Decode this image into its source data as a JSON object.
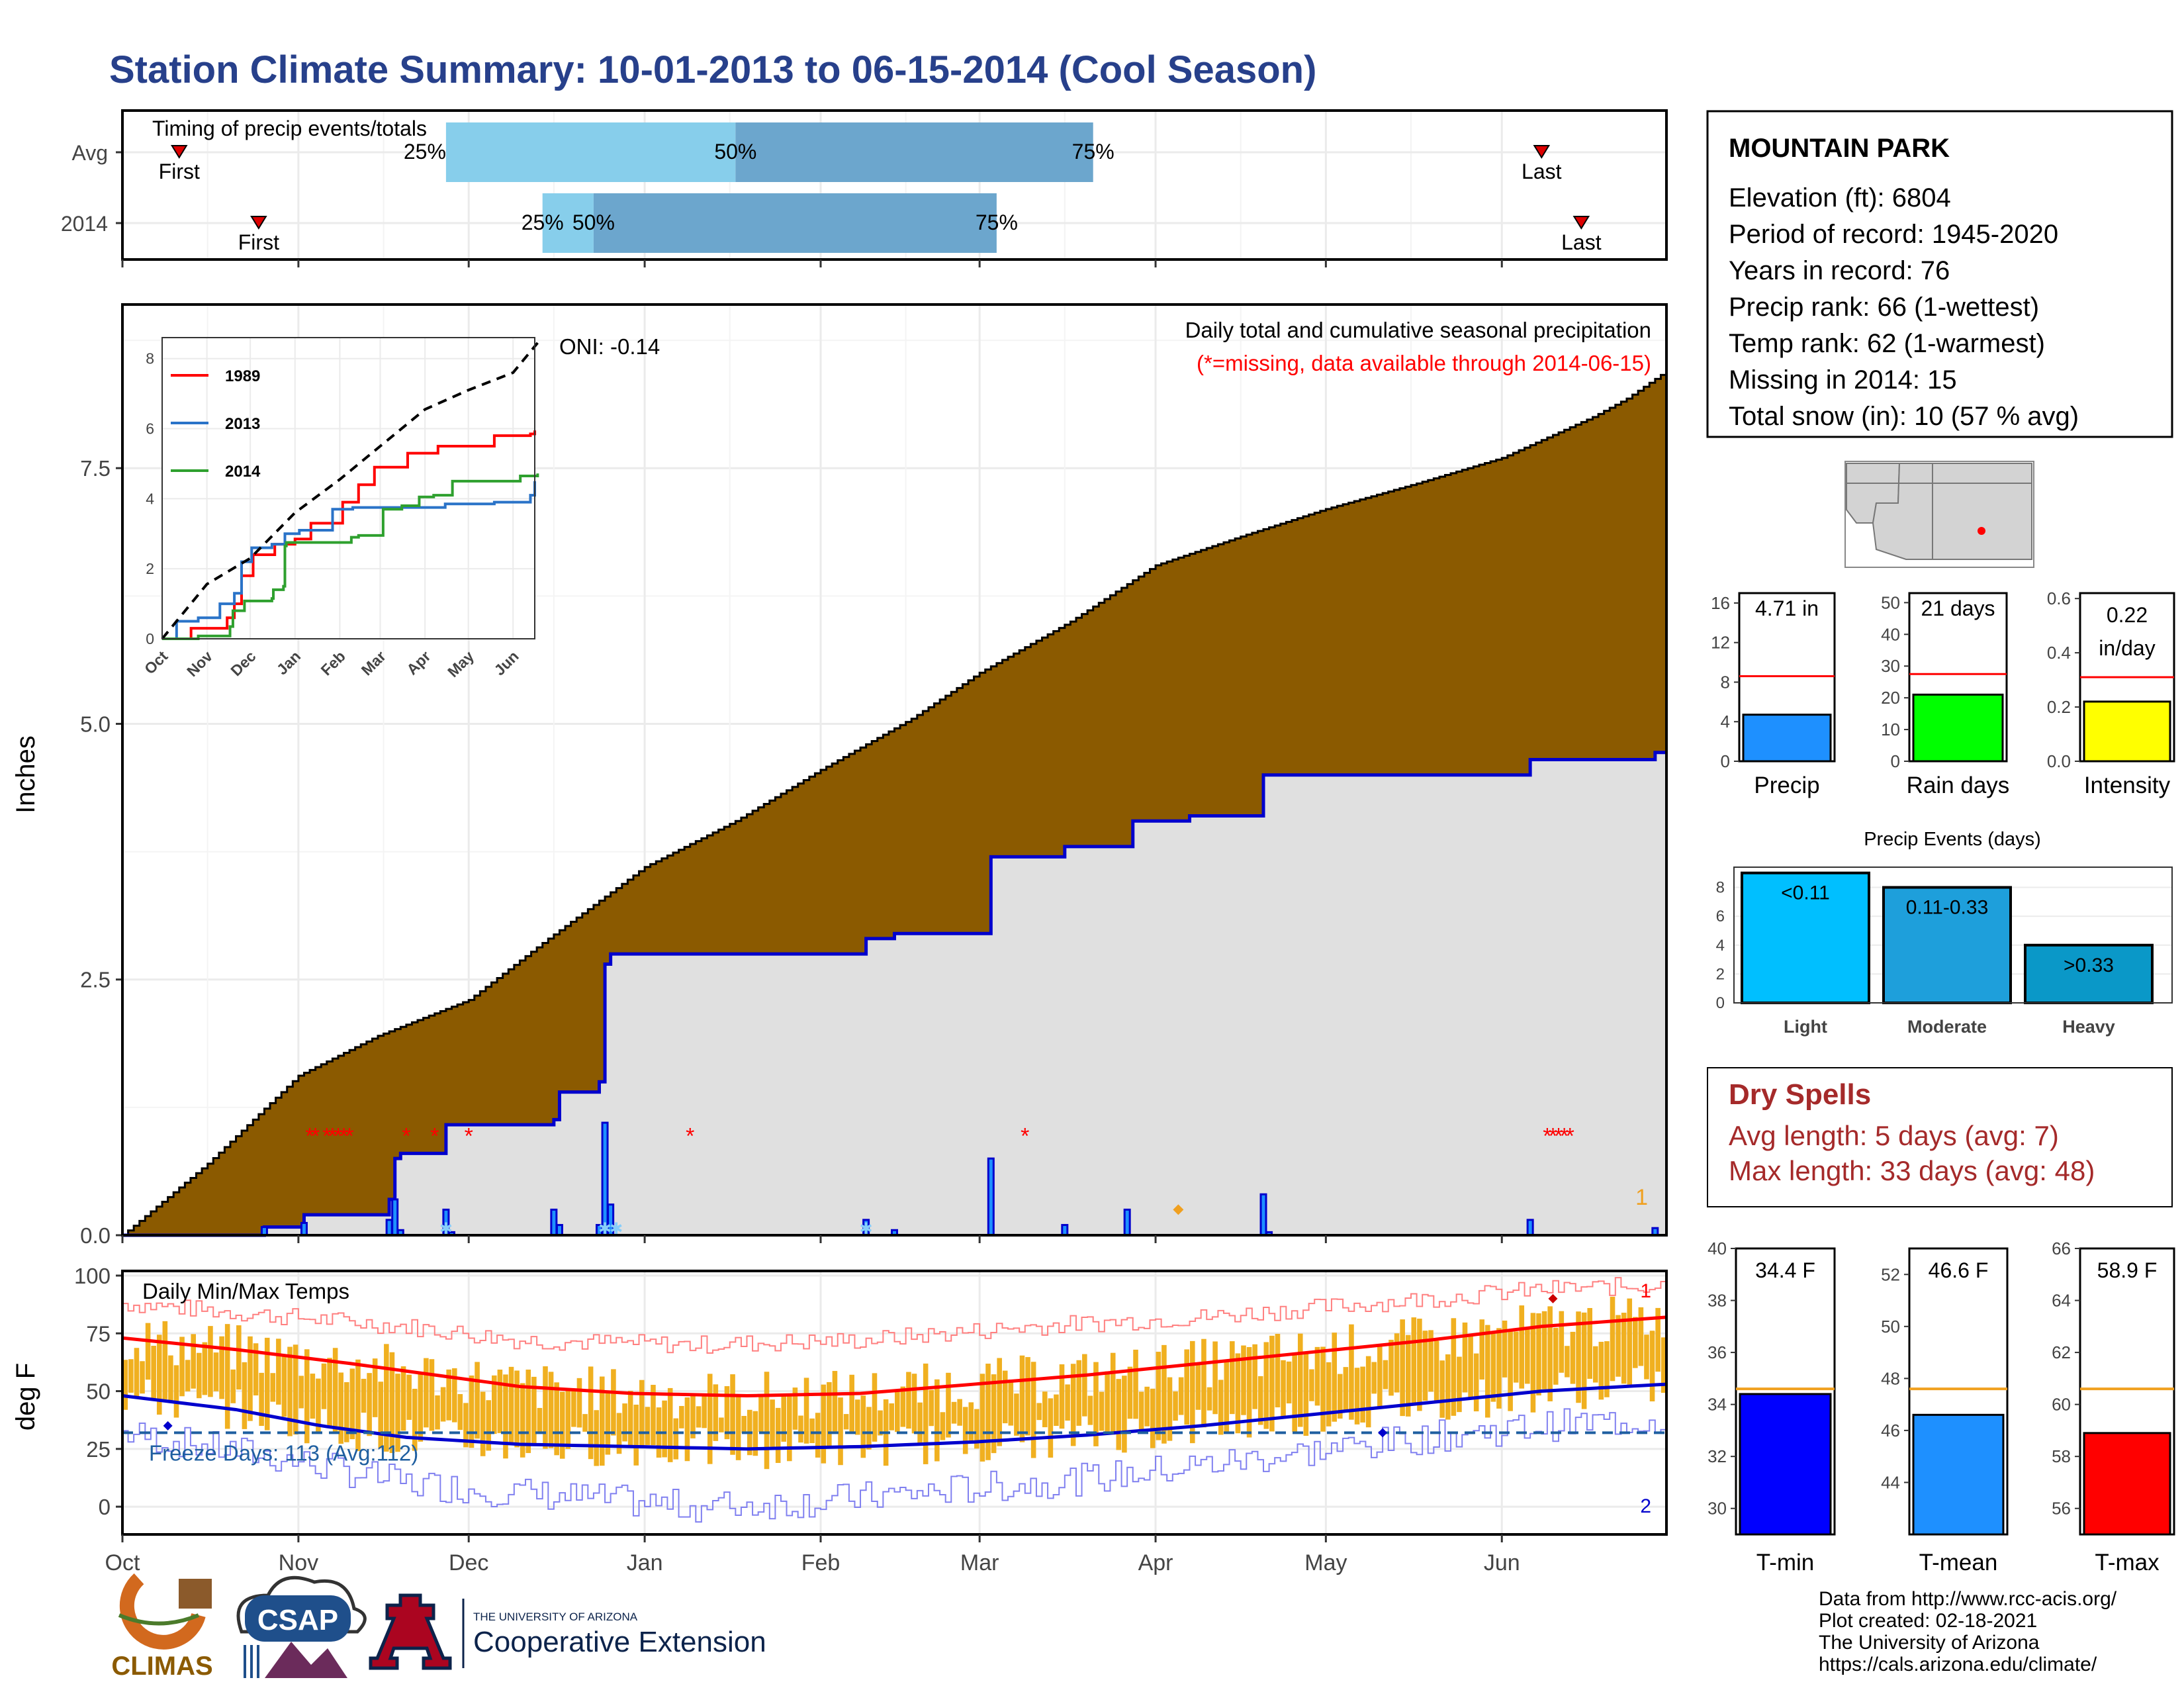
{
  "title": "Station Climate Summary: 10-01-2013 to 06-15-2014 (Cool Season)",
  "colors": {
    "title": "#27408B",
    "brown": "#8B5A00",
    "gray_fill": "#E0E0E0",
    "blue": "#0000CD",
    "red": "#FF0000",
    "orange": "#F0B020",
    "lightblue": "#87CEEB",
    "steelblue": "#6CA6CD",
    "darkred": "#A52A2A"
  },
  "months": [
    "Oct",
    "Nov",
    "Dec",
    "Jan",
    "Feb",
    "Mar",
    "Apr",
    "May",
    "Jun"
  ],
  "timing": {
    "label": "Timing of precip events/totals",
    "rows": [
      {
        "name": "Avg",
        "first_day": 10,
        "last_day": 250,
        "q25": 57,
        "q50": 108,
        "q75": 171
      },
      {
        "name": "2014",
        "first_day": 24,
        "last_day": 257,
        "q25": 74,
        "q50": 83,
        "q75": 154
      }
    ],
    "first_label": "First",
    "last_label": "Last",
    "q25_label": "25%",
    "q50_label": "50%",
    "q75_label": "75%"
  },
  "station": {
    "name": "MOUNTAIN PARK",
    "lines": [
      "Elevation (ft): 6804",
      "Period of record: 1945-2020",
      "Years in record: 76",
      "Precip rank: 66 (1-wettest)",
      "Temp rank: 62 (1-warmest)",
      "Missing in 2014: 15",
      "Total snow (in): 10 (57 % avg)"
    ]
  },
  "main": {
    "ylabel": "Inches",
    "caption1": "Daily total and cumulative seasonal precipitation",
    "caption2": "(*=missing, data available through 2014-06-15)",
    "oni": "ONI: -0.14",
    "corner_label": "1",
    "yticks": [
      "0.0",
      "2.5",
      "5.0",
      "7.5"
    ],
    "avg_points": [
      [
        0,
        0
      ],
      [
        15,
        0.7
      ],
      [
        31,
        1.56
      ],
      [
        45,
        1.95
      ],
      [
        61,
        2.3
      ],
      [
        75,
        2.9
      ],
      [
        92,
        3.6
      ],
      [
        108,
        4.05
      ],
      [
        123,
        4.55
      ],
      [
        139,
        5.05
      ],
      [
        151,
        5.5
      ],
      [
        167,
        6.0
      ],
      [
        182,
        6.55
      ],
      [
        198,
        6.85
      ],
      [
        212,
        7.1
      ],
      [
        228,
        7.35
      ],
      [
        243,
        7.6
      ],
      [
        259,
        8.0
      ],
      [
        265,
        8.18
      ],
      [
        272,
        8.45
      ]
    ],
    "obs_steps": [
      [
        0,
        0
      ],
      [
        25,
        0.08
      ],
      [
        32,
        0.2
      ],
      [
        47,
        0.2
      ],
      [
        47,
        0.35
      ],
      [
        48,
        0.75
      ],
      [
        49,
        0.8
      ],
      [
        56,
        0.8
      ],
      [
        57,
        1.08
      ],
      [
        76,
        1.08
      ],
      [
        76,
        1.13
      ],
      [
        77,
        1.15
      ],
      [
        77,
        1.4
      ],
      [
        84,
        1.4
      ],
      [
        84,
        1.5
      ],
      [
        85,
        1.6
      ],
      [
        85,
        2.65
      ],
      [
        86,
        2.75
      ],
      [
        131,
        2.75
      ],
      [
        131,
        2.9
      ],
      [
        136,
        2.9
      ],
      [
        136,
        2.95
      ],
      [
        153,
        2.95
      ],
      [
        153,
        3.7
      ],
      [
        166,
        3.7
      ],
      [
        166,
        3.8
      ],
      [
        177,
        3.8
      ],
      [
        178,
        4.05
      ],
      [
        188,
        4.05
      ],
      [
        188,
        4.1
      ],
      [
        201,
        4.1
      ],
      [
        201,
        4.5
      ],
      [
        248,
        4.5
      ],
      [
        248,
        4.65
      ],
      [
        269,
        4.65
      ],
      [
        270,
        4.72
      ],
      [
        272,
        4.72
      ]
    ],
    "daily_bars": [
      [
        25,
        0.08
      ],
      [
        32,
        0.12
      ],
      [
        47,
        0.15
      ],
      [
        48,
        0.35
      ],
      [
        49,
        0.05
      ],
      [
        57,
        0.25
      ],
      [
        58,
        0.03
      ],
      [
        76,
        0.25
      ],
      [
        77,
        0.1
      ],
      [
        84,
        0.1
      ],
      [
        85,
        1.1
      ],
      [
        86,
        0.3
      ],
      [
        131,
        0.15
      ],
      [
        136,
        0.05
      ],
      [
        153,
        0.75
      ],
      [
        166,
        0.1
      ],
      [
        177,
        0.25
      ],
      [
        201,
        0.4
      ],
      [
        202,
        0.03
      ],
      [
        248,
        0.15
      ],
      [
        270,
        0.07
      ]
    ],
    "missing_days": [
      33,
      34,
      36,
      37,
      38,
      39,
      40,
      50,
      55,
      61,
      100,
      159,
      251,
      252,
      253,
      254,
      255
    ],
    "snow_days": [
      57,
      85,
      87,
      131
    ],
    "orange_point": [
      186,
      0.25
    ]
  },
  "inset": {
    "yticks": [
      "0",
      "2",
      "4",
      "6",
      "8"
    ],
    "xticks": [
      "Oct",
      "Nov",
      "Dec",
      "Jan",
      "Feb",
      "Mar",
      "Apr",
      "May",
      "Jun"
    ],
    "series": [
      {
        "name": "1989",
        "color": "#FF0000",
        "points": [
          [
            0,
            0
          ],
          [
            20,
            0.3
          ],
          [
            45,
            0.6
          ],
          [
            50,
            1
          ],
          [
            55,
            1.8
          ],
          [
            63,
            2.4
          ],
          [
            78,
            2.7
          ],
          [
            92,
            2.85
          ],
          [
            103,
            3.3
          ],
          [
            125,
            3.9
          ],
          [
            136,
            4.4
          ],
          [
            147,
            4.9
          ],
          [
            170,
            5.3
          ],
          [
            191,
            5.5
          ],
          [
            204,
            5.5
          ],
          [
            230,
            5.8
          ],
          [
            255,
            5.85
          ],
          [
            258,
            5.95
          ]
        ]
      },
      {
        "name": "2013",
        "color": "#2A73C8",
        "points": [
          [
            0,
            0
          ],
          [
            10,
            0.5
          ],
          [
            25,
            0.6
          ],
          [
            40,
            1
          ],
          [
            50,
            1.3
          ],
          [
            55,
            2.2
          ],
          [
            62,
            2.6
          ],
          [
            76,
            2.7
          ],
          [
            85,
            3
          ],
          [
            95,
            3.1
          ],
          [
            118,
            3.7
          ],
          [
            132,
            3.75
          ],
          [
            170,
            3.75
          ],
          [
            196,
            3.85
          ],
          [
            230,
            3.9
          ],
          [
            255,
            4.1
          ],
          [
            258,
            4.5
          ]
        ]
      },
      {
        "name": "2014",
        "color": "#2EA02E",
        "points": [
          [
            0,
            0
          ],
          [
            25,
            0.08
          ],
          [
            47,
            0.35
          ],
          [
            49,
            0.8
          ],
          [
            57,
            1.08
          ],
          [
            76,
            1.15
          ],
          [
            77,
            1.4
          ],
          [
            84,
            1.5
          ],
          [
            85,
            2.65
          ],
          [
            86,
            2.75
          ],
          [
            131,
            2.9
          ],
          [
            136,
            2.95
          ],
          [
            153,
            3.7
          ],
          [
            166,
            3.8
          ],
          [
            178,
            4.05
          ],
          [
            188,
            4.1
          ],
          [
            201,
            4.5
          ],
          [
            248,
            4.65
          ],
          [
            260,
            4.72
          ]
        ]
      }
    ],
    "avg_dashed": [
      [
        0,
        0
      ],
      [
        31,
        1.56
      ],
      [
        61,
        2.3
      ],
      [
        92,
        3.6
      ],
      [
        123,
        4.55
      ],
      [
        151,
        5.5
      ],
      [
        182,
        6.55
      ],
      [
        212,
        7.1
      ],
      [
        243,
        7.6
      ],
      [
        260,
        8.45
      ]
    ]
  },
  "panels": {
    "precip": {
      "label": "Precip",
      "value": 4.71,
      "avg": 8.6,
      "ymax": 17,
      "yticks": [
        0,
        4,
        8,
        12,
        16
      ],
      "text": "4.71 in",
      "color": "#1E90FF"
    },
    "raindays": {
      "label": "Rain days",
      "value": 21,
      "avg": 27.5,
      "ymax": 53,
      "yticks": [
        0,
        10,
        20,
        30,
        40,
        50
      ],
      "text": "21 days",
      "color": "#00FF00"
    },
    "intensity": {
      "label": "Intensity",
      "value": 0.22,
      "avg": 0.31,
      "ymax": 0.62,
      "yticks": [
        "0.0",
        "0.2",
        "0.4",
        "0.6"
      ],
      "text1": "0.22",
      "text2": "in/day",
      "color": "#FFFF00"
    }
  },
  "events": {
    "title": "Precip Events (days)",
    "categories": [
      "Light",
      "Moderate",
      "Heavy"
    ],
    "values": [
      9,
      8,
      4
    ],
    "labels": [
      "<0.11",
      "0.11-0.33",
      ">0.33"
    ],
    "colors": [
      "#00BFFF",
      "#1E9FDB",
      "#0A98C8"
    ],
    "yticks": [
      0,
      2,
      4,
      6,
      8
    ]
  },
  "dry": {
    "title": "Dry Spells",
    "line1": "Avg length: 5 days (avg: 7)",
    "line2": "Max length: 33 days (avg: 48)"
  },
  "temps": {
    "ylabel": "deg F",
    "title": "Daily Min/Max Temps",
    "freeze": "Freeze Days: 113 (Avg:112)",
    "freeze_level": 32,
    "yticks": [
      0,
      25,
      50,
      75,
      100
    ],
    "label1": "1",
    "label2": "2",
    "avg_max": [
      [
        0,
        73
      ],
      [
        20,
        68
      ],
      [
        30,
        65
      ],
      [
        40,
        62
      ],
      [
        55,
        57
      ],
      [
        70,
        52
      ],
      [
        90,
        49
      ],
      [
        110,
        48
      ],
      [
        130,
        49
      ],
      [
        150,
        53
      ],
      [
        170,
        57
      ],
      [
        190,
        62
      ],
      [
        210,
        67
      ],
      [
        230,
        72
      ],
      [
        250,
        78
      ],
      [
        272,
        82
      ]
    ],
    "avg_min": [
      [
        0,
        48
      ],
      [
        20,
        42
      ],
      [
        35,
        35
      ],
      [
        50,
        30
      ],
      [
        70,
        27
      ],
      [
        90,
        26
      ],
      [
        110,
        25
      ],
      [
        130,
        26
      ],
      [
        150,
        28
      ],
      [
        170,
        31
      ],
      [
        190,
        35
      ],
      [
        210,
        40
      ],
      [
        230,
        45
      ],
      [
        250,
        50
      ],
      [
        272,
        53
      ]
    ],
    "record_max": [
      [
        0,
        88
      ],
      [
        30,
        82
      ],
      [
        50,
        78
      ],
      [
        70,
        72
      ],
      [
        100,
        70
      ],
      [
        130,
        72
      ],
      [
        160,
        78
      ],
      [
        190,
        82
      ],
      [
        220,
        88
      ],
      [
        250,
        94
      ],
      [
        272,
        96
      ]
    ],
    "record_min": [
      [
        0,
        32
      ],
      [
        30,
        20
      ],
      [
        50,
        10
      ],
      [
        70,
        6
      ],
      [
        100,
        0
      ],
      [
        120,
        2
      ],
      [
        150,
        8
      ],
      [
        170,
        12
      ],
      [
        190,
        18
      ],
      [
        210,
        24
      ],
      [
        230,
        30
      ],
      [
        250,
        35
      ],
      [
        272,
        38
      ]
    ],
    "obs_bands_seed": 7
  },
  "tpanels": {
    "tmin": {
      "label": "T-min",
      "value": 34.4,
      "avg": 34.6,
      "ymin": 29,
      "ymax": 40,
      "yticks": [
        30,
        32,
        34,
        36,
        38,
        40
      ],
      "text": "34.4 F",
      "color": "#0000FF"
    },
    "tmean": {
      "label": "T-mean",
      "value": 46.6,
      "avg": 47.6,
      "ymin": 42,
      "ymax": 53,
      "yticks": [
        44,
        46,
        48,
        50,
        52
      ],
      "text": "46.6 F",
      "color": "#1E90FF"
    },
    "tmax": {
      "label": "T-max",
      "value": 58.9,
      "avg": 60.6,
      "ymin": 55,
      "ymax": 66,
      "yticks": [
        56,
        58,
        60,
        62,
        64,
        66
      ],
      "text": "58.9 F",
      "color": "#FF0000"
    }
  },
  "logos": {
    "climas": "CLIMAS",
    "csap": "CSAP",
    "ua_small": "THE UNIVERSITY OF ARIZONA",
    "ua_big": "Cooperative Extension"
  },
  "footer": [
    "Data from http://www.rcc-acis.org/",
    "Plot created: 02-18-2021",
    "The University of Arizona",
    "https://cals.arizona.edu/climate/"
  ]
}
